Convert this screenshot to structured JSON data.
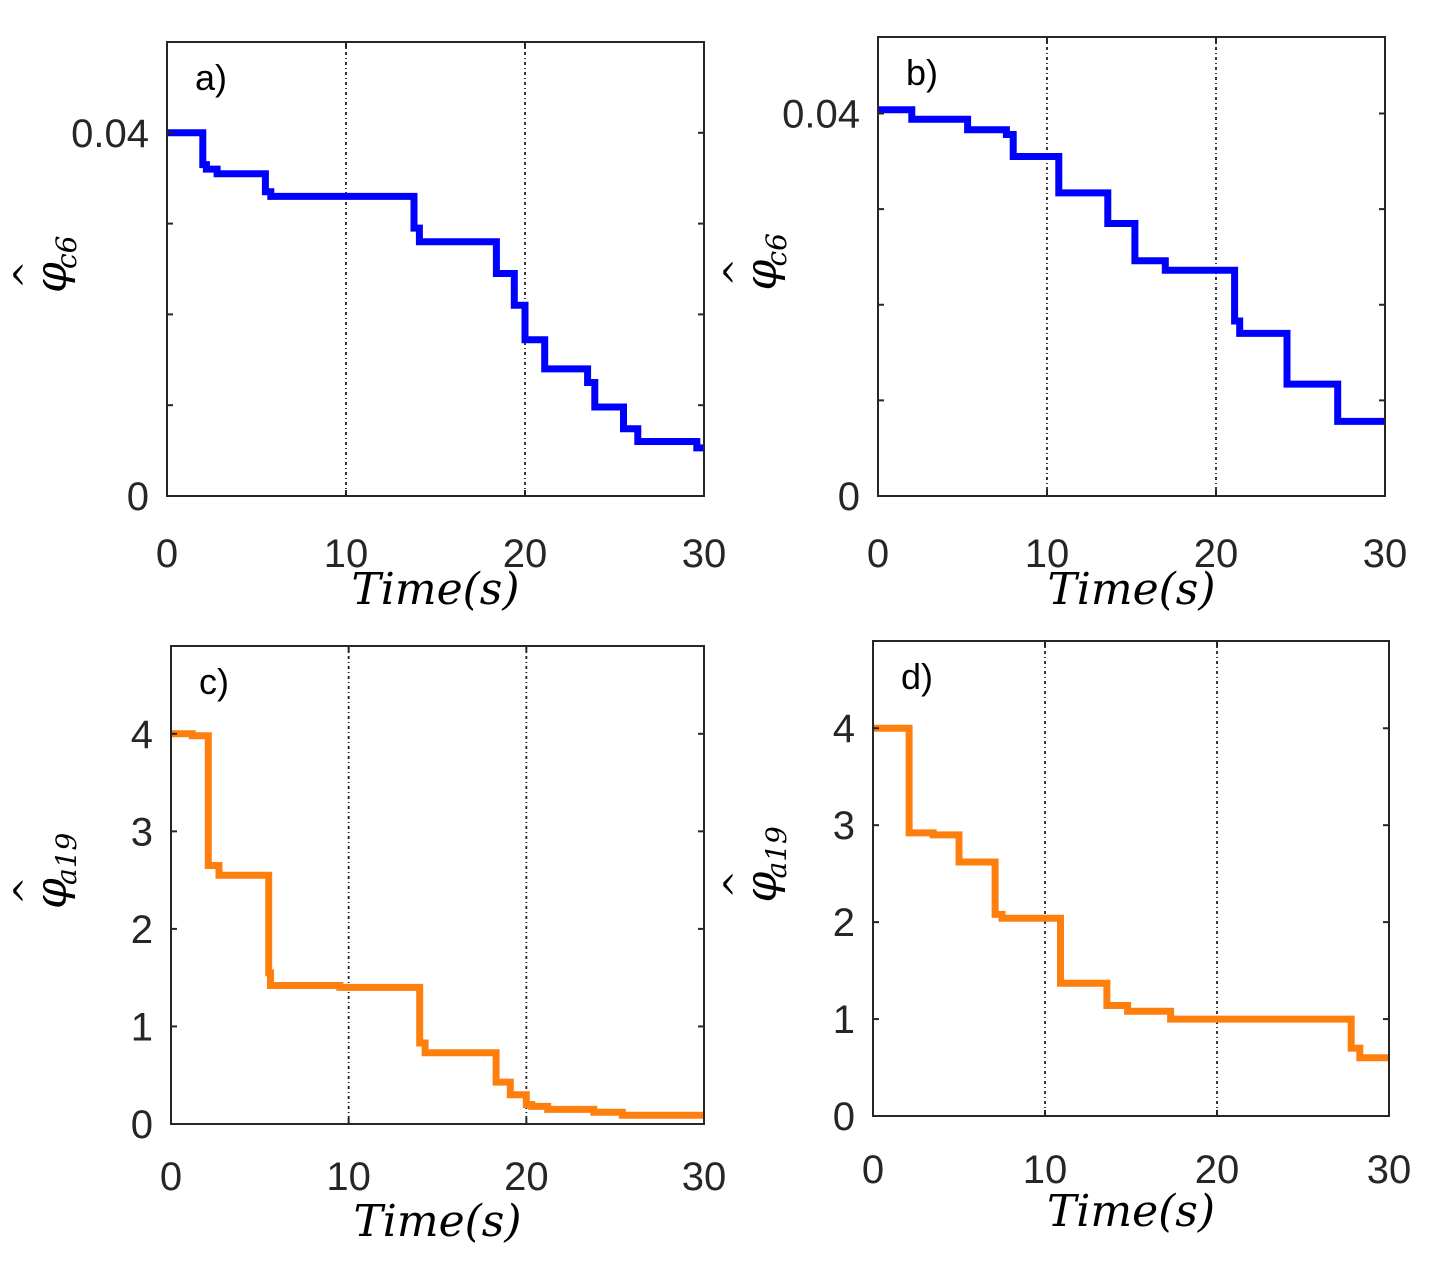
{
  "chart_data": [
    {
      "type": "line",
      "panel_label": "a)",
      "xlabel": "Time(s)",
      "ylabel_symbol": "φ",
      "ylabel_subscript": "c6",
      "ylabel_hat": "^",
      "xlim": [
        0,
        30
      ],
      "ylim": [
        0,
        0.05
      ],
      "xticks": [
        0,
        10,
        20,
        30
      ],
      "xtick_labels": [
        "0",
        "10",
        "20",
        "30"
      ],
      "yticks": [
        0,
        0.04
      ],
      "ytick_labels": [
        "0",
        "0.04"
      ],
      "vlines": [
        10,
        20
      ],
      "color": "#0000ff",
      "series": [
        {
          "name": "phi_c6 (a)",
          "x": [
            0,
            2,
            2,
            2.2,
            2.2,
            2.8,
            2.8,
            5.5,
            5.5,
            5.8,
            5.8,
            13.8,
            13.8,
            14.1,
            14.1,
            18.4,
            18.4,
            18.6,
            18.6,
            19.4,
            19.4,
            20,
            20,
            20.2,
            20.2,
            21.1,
            21.1,
            23.5,
            23.5,
            23.9,
            23.9,
            25.5,
            25.5,
            26.3,
            26.3,
            29.6,
            29.6,
            30
          ],
          "y": [
            0.04,
            0.04,
            0.0365,
            0.0365,
            0.036,
            0.036,
            0.0355,
            0.0355,
            0.0335,
            0.0335,
            0.033,
            0.033,
            0.0295,
            0.0295,
            0.028,
            0.028,
            0.0245,
            0.0245,
            0.0245,
            0.0245,
            0.021,
            0.021,
            0.0172,
            0.0172,
            0.0172,
            0.0172,
            0.014,
            0.014,
            0.0125,
            0.0125,
            0.0098,
            0.0098,
            0.0074,
            0.0074,
            0.006,
            0.006,
            0.0053,
            0.0053
          ]
        }
      ]
    },
    {
      "type": "line",
      "panel_label": "b)",
      "xlabel": "Time(s)",
      "ylabel_symbol": "φ",
      "ylabel_subscript": "c6",
      "ylabel_hat": "^",
      "xlim": [
        0,
        30
      ],
      "ylim": [
        0,
        0.048
      ],
      "xticks": [
        0,
        10,
        20,
        30
      ],
      "xtick_labels": [
        "0",
        "10",
        "20",
        "30"
      ],
      "yticks": [
        0,
        0.04
      ],
      "ytick_labels": [
        "0",
        "0.04"
      ],
      "vlines": [
        10,
        20
      ],
      "color": "#0000ff",
      "series": [
        {
          "name": "phi_c6 (b)",
          "x": [
            0,
            2,
            2,
            5.3,
            5.3,
            7.6,
            7.6,
            8,
            8,
            10.7,
            10.7,
            13.6,
            13.6,
            15.2,
            15.2,
            17,
            17,
            21.1,
            21.1,
            21.4,
            21.4,
            24.2,
            24.2,
            27.2,
            27.2,
            30
          ],
          "y": [
            0.0404,
            0.0404,
            0.0394,
            0.0394,
            0.0383,
            0.0383,
            0.0378,
            0.0378,
            0.0355,
            0.0355,
            0.0317,
            0.0317,
            0.0285,
            0.0285,
            0.0246,
            0.0246,
            0.0236,
            0.0236,
            0.0183,
            0.0183,
            0.017,
            0.017,
            0.0117,
            0.0117,
            0.0078,
            0.0078
          ]
        }
      ]
    },
    {
      "type": "line",
      "panel_label": "c)",
      "xlabel": "Time(s)",
      "ylabel_symbol": "φ",
      "ylabel_subscript": "a19",
      "ylabel_hat": "^",
      "xlim": [
        0,
        30
      ],
      "ylim": [
        0,
        4.9
      ],
      "xticks": [
        0,
        10,
        20,
        30
      ],
      "xtick_labels": [
        "0",
        "10",
        "20",
        "30"
      ],
      "yticks": [
        0,
        1,
        2,
        3,
        4
      ],
      "ytick_labels": [
        "0",
        "1",
        "2",
        "3",
        "4"
      ],
      "vlines": [
        10,
        20
      ],
      "color": "#ff7f0e",
      "series": [
        {
          "name": "phi_a19 (c)",
          "x": [
            0,
            1.2,
            1.2,
            2.1,
            2.1,
            2.7,
            2.7,
            5.5,
            5.5,
            5.6,
            5.6,
            9.5,
            9.5,
            14,
            14,
            14.3,
            14.3,
            18.3,
            18.3,
            19.1,
            19.1,
            20,
            20,
            20.3,
            20.3,
            21.2,
            21.2,
            23.8,
            23.8,
            25.4,
            25.4,
            30
          ],
          "y": [
            4,
            4,
            3.98,
            3.98,
            2.65,
            2.65,
            2.55,
            2.55,
            1.55,
            1.55,
            1.42,
            1.42,
            1.4,
            1.4,
            0.83,
            0.83,
            0.73,
            0.73,
            0.43,
            0.43,
            0.3,
            0.3,
            0.2,
            0.2,
            0.18,
            0.18,
            0.15,
            0.15,
            0.12,
            0.12,
            0.09,
            0.09
          ]
        }
      ]
    },
    {
      "type": "line",
      "panel_label": "d)",
      "xlabel": "Time(s)",
      "ylabel_symbol": "φ",
      "ylabel_subscript": "a19",
      "ylabel_hat": "^",
      "xlim": [
        0,
        30
      ],
      "ylim": [
        0,
        4.9
      ],
      "xticks": [
        0,
        10,
        20,
        30
      ],
      "xtick_labels": [
        "0",
        "10",
        "20",
        "30"
      ],
      "yticks": [
        0,
        1,
        2,
        3,
        4
      ],
      "ytick_labels": [
        "0",
        "1",
        "2",
        "3",
        "4"
      ],
      "vlines": [
        10,
        20
      ],
      "color": "#ff7f0e",
      "series": [
        {
          "name": "phi_a19 (d)",
          "x": [
            0,
            2.1,
            2.1,
            3.5,
            3.5,
            5,
            5,
            7.1,
            7.1,
            7.5,
            7.5,
            10.9,
            10.9,
            13.6,
            13.6,
            14.8,
            14.8,
            17.3,
            17.3,
            27.8,
            27.8,
            28.3,
            28.3,
            30
          ],
          "y": [
            4,
            4,
            2.92,
            2.92,
            2.9,
            2.9,
            2.62,
            2.62,
            2.08,
            2.08,
            2.04,
            2.04,
            1.37,
            1.37,
            1.14,
            1.14,
            1.08,
            1.08,
            1,
            1,
            0.7,
            0.7,
            0.6,
            0.6
          ]
        }
      ]
    }
  ]
}
